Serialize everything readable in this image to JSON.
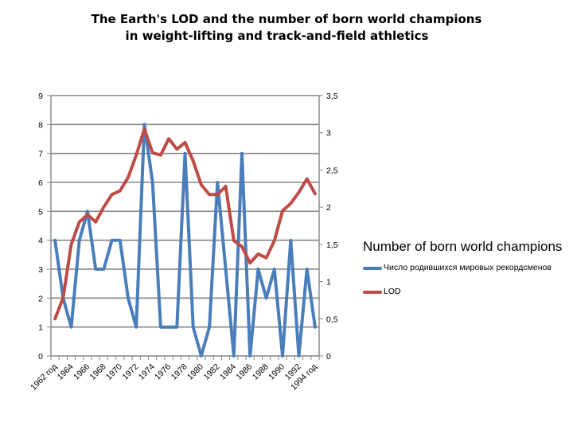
{
  "title": {
    "line1": "The Earth's LOD and the number of born world champions",
    "line2": "in weight-lifting and track-and-field athletics"
  },
  "colors": {
    "champions": "#4a7ebb",
    "lod": "#be4b48",
    "grid": "#868686",
    "axis": "#868686",
    "text": "#000000"
  },
  "chart_data": {
    "type": "line",
    "title": "The Earth's LOD and the number of born world champions in weight-lifting and track-and-field athletics",
    "x_start": 1962,
    "x_end": 1994,
    "categories": [
      "1962 год",
      "1963",
      "1964",
      "1965",
      "1966",
      "1967",
      "1968",
      "1969",
      "1970",
      "1971",
      "1972",
      "1973",
      "1974",
      "1975",
      "1976",
      "1977",
      "1978",
      "1979",
      "1980",
      "1981",
      "1982",
      "1983",
      "1984",
      "1985",
      "1986",
      "1987",
      "1988",
      "1989",
      "1990",
      "1991",
      "1992",
      "1993",
      "1994 год"
    ],
    "x_tick_labels": [
      "1962 год",
      "1964",
      "1966",
      "1968",
      "1970",
      "1972",
      "1974",
      "1976",
      "1978",
      "1980",
      "1982",
      "1984",
      "1986",
      "1988",
      "1990",
      "1992",
      "1994 год"
    ],
    "left_axis": {
      "ylim": [
        0,
        9
      ],
      "ticks": [
        "0",
        "1",
        "2",
        "3",
        "4",
        "5",
        "6",
        "7",
        "8",
        "9"
      ]
    },
    "right_axis": {
      "ylim": [
        0,
        3.5
      ],
      "ticks": [
        "0",
        "0,5",
        "1",
        "1,5",
        "2",
        "2,5",
        "3",
        "3,5"
      ]
    },
    "series": [
      {
        "name": "Число родившихся мировых рекордсменов",
        "axis": "left",
        "values": [
          4,
          2,
          1,
          4,
          5,
          3,
          3,
          4,
          4,
          2,
          1,
          8,
          6,
          1,
          1,
          1,
          7,
          1,
          0,
          1,
          6,
          3,
          0,
          7,
          0,
          3,
          2,
          3,
          0,
          4,
          0,
          3,
          1
        ]
      },
      {
        "name": "LOD",
        "axis": "right",
        "values": [
          0.5,
          0.78,
          1.5,
          1.8,
          1.9,
          1.8,
          2.0,
          2.17,
          2.22,
          2.4,
          2.7,
          3.05,
          2.73,
          2.7,
          2.92,
          2.78,
          2.87,
          2.62,
          2.3,
          2.17,
          2.17,
          2.28,
          1.55,
          1.47,
          1.25,
          1.37,
          1.32,
          1.55,
          1.95,
          2.05,
          2.2,
          2.38,
          2.18
        ]
      }
    ],
    "legend": {
      "title": "Number of born world champions",
      "position": "right",
      "entries": [
        "Число родившихся мировых рекордсменов",
        "LOD"
      ]
    },
    "grid": true
  }
}
